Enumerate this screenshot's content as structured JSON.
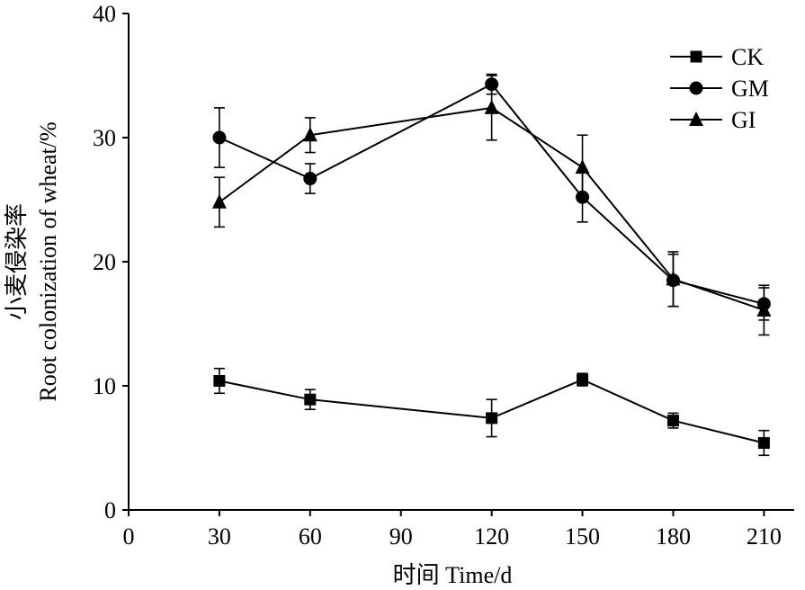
{
  "chart_data": {
    "type": "line",
    "xlabel": "时间 Time/d",
    "ylabel_cn": "小麦侵染率",
    "ylabel_en": "Root colonization of wheat/%",
    "xlim": [
      0,
      220
    ],
    "ylim": [
      0,
      40
    ],
    "xticks": [
      0,
      30,
      60,
      90,
      120,
      150,
      180,
      210
    ],
    "yticks": [
      0,
      10,
      20,
      30,
      40
    ],
    "grid": false,
    "legend_position": "top-right",
    "x": [
      30,
      60,
      120,
      150,
      180,
      210
    ],
    "series": [
      {
        "name": "CK",
        "marker": "square",
        "values": [
          10.4,
          8.9,
          7.4,
          10.5,
          7.2,
          5.4
        ],
        "errors": [
          1.0,
          0.8,
          1.5,
          0.5,
          0.6,
          1.0
        ]
      },
      {
        "name": "GM",
        "marker": "circle",
        "values": [
          30.0,
          26.7,
          34.3,
          25.2,
          18.5,
          16.6
        ],
        "errors": [
          2.4,
          1.2,
          0.8,
          2.0,
          2.1,
          1.3
        ]
      },
      {
        "name": "GI",
        "marker": "triangle",
        "values": [
          24.8,
          30.2,
          32.4,
          27.6,
          18.6,
          16.1
        ],
        "errors": [
          2.0,
          1.4,
          2.6,
          2.6,
          2.2,
          2.0
        ]
      }
    ]
  },
  "colors": {
    "ink": "#000000",
    "background": "#ffffff"
  }
}
